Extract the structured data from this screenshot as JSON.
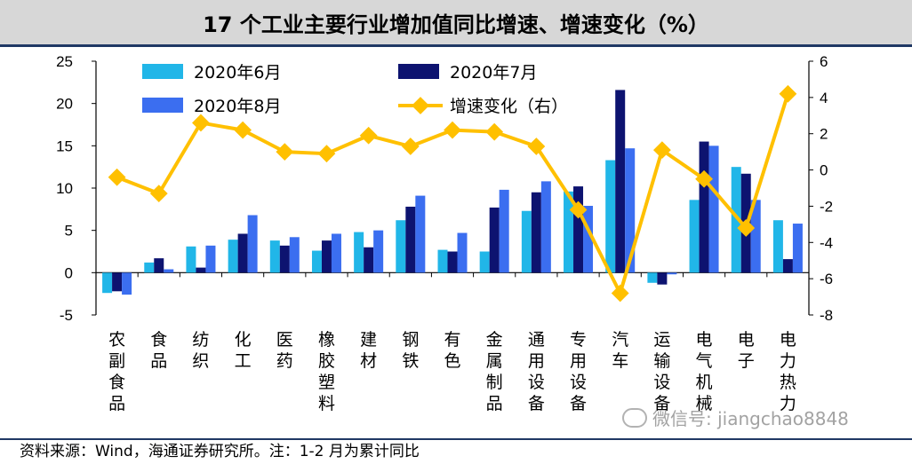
{
  "title": "17 个工业主要行业增加值同比增速、增速变化（%）",
  "footer": "资料来源：Wind，海通证券研究所。注：1-2 月为累计同比",
  "watermark": "微信号: jiangchao8848",
  "colors": {
    "jun": "#21b6e8",
    "jul": "#0d1370",
    "aug": "#3b6ef0",
    "chg": "#ffc000"
  },
  "chart_data": {
    "type": "bar",
    "categories": [
      "农副食品",
      "食品",
      "纺织",
      "化工",
      "医药",
      "橡胶塑料",
      "建材",
      "钢铁",
      "有色",
      "金属制品",
      "通用设备",
      "专用设备",
      "汽车",
      "运输设备",
      "电气机械",
      "电子",
      "电力热力"
    ],
    "series": [
      {
        "name": "2020年6月",
        "axis": "left",
        "values": [
          -2.4,
          1.2,
          3.1,
          3.9,
          3.8,
          2.6,
          4.8,
          6.2,
          2.7,
          2.5,
          7.3,
          9.6,
          13.3,
          -1.2,
          8.6,
          12.5,
          6.2
        ]
      },
      {
        "name": "2020年7月",
        "axis": "left",
        "values": [
          -2.2,
          1.7,
          0.6,
          4.6,
          3.2,
          3.8,
          3.0,
          7.8,
          2.5,
          7.7,
          9.5,
          10.2,
          21.6,
          -1.4,
          15.5,
          11.7,
          1.6
        ]
      },
      {
        "name": "2020年8月",
        "axis": "left",
        "values": [
          -2.6,
          0.4,
          3.2,
          6.8,
          4.2,
          4.6,
          5.0,
          9.1,
          4.7,
          9.8,
          10.8,
          7.9,
          14.7,
          -0.2,
          15.0,
          8.6,
          5.8
        ]
      },
      {
        "name": "增速变化（右）",
        "type": "line",
        "axis": "right",
        "values": [
          -0.4,
          -1.3,
          2.6,
          2.2,
          1.0,
          0.9,
          1.9,
          1.3,
          2.2,
          2.1,
          1.3,
          -2.2,
          -6.8,
          1.1,
          -0.5,
          -3.2,
          4.2
        ]
      }
    ],
    "y_left": {
      "min": -5,
      "max": 25,
      "ticks": [
        -5,
        0,
        5,
        10,
        15,
        20,
        25
      ]
    },
    "y_right": {
      "min": -8,
      "max": 6,
      "ticks": [
        -8,
        -6,
        -4,
        -2,
        0,
        2,
        4,
        6
      ]
    },
    "legend": "top-left, two columns"
  }
}
